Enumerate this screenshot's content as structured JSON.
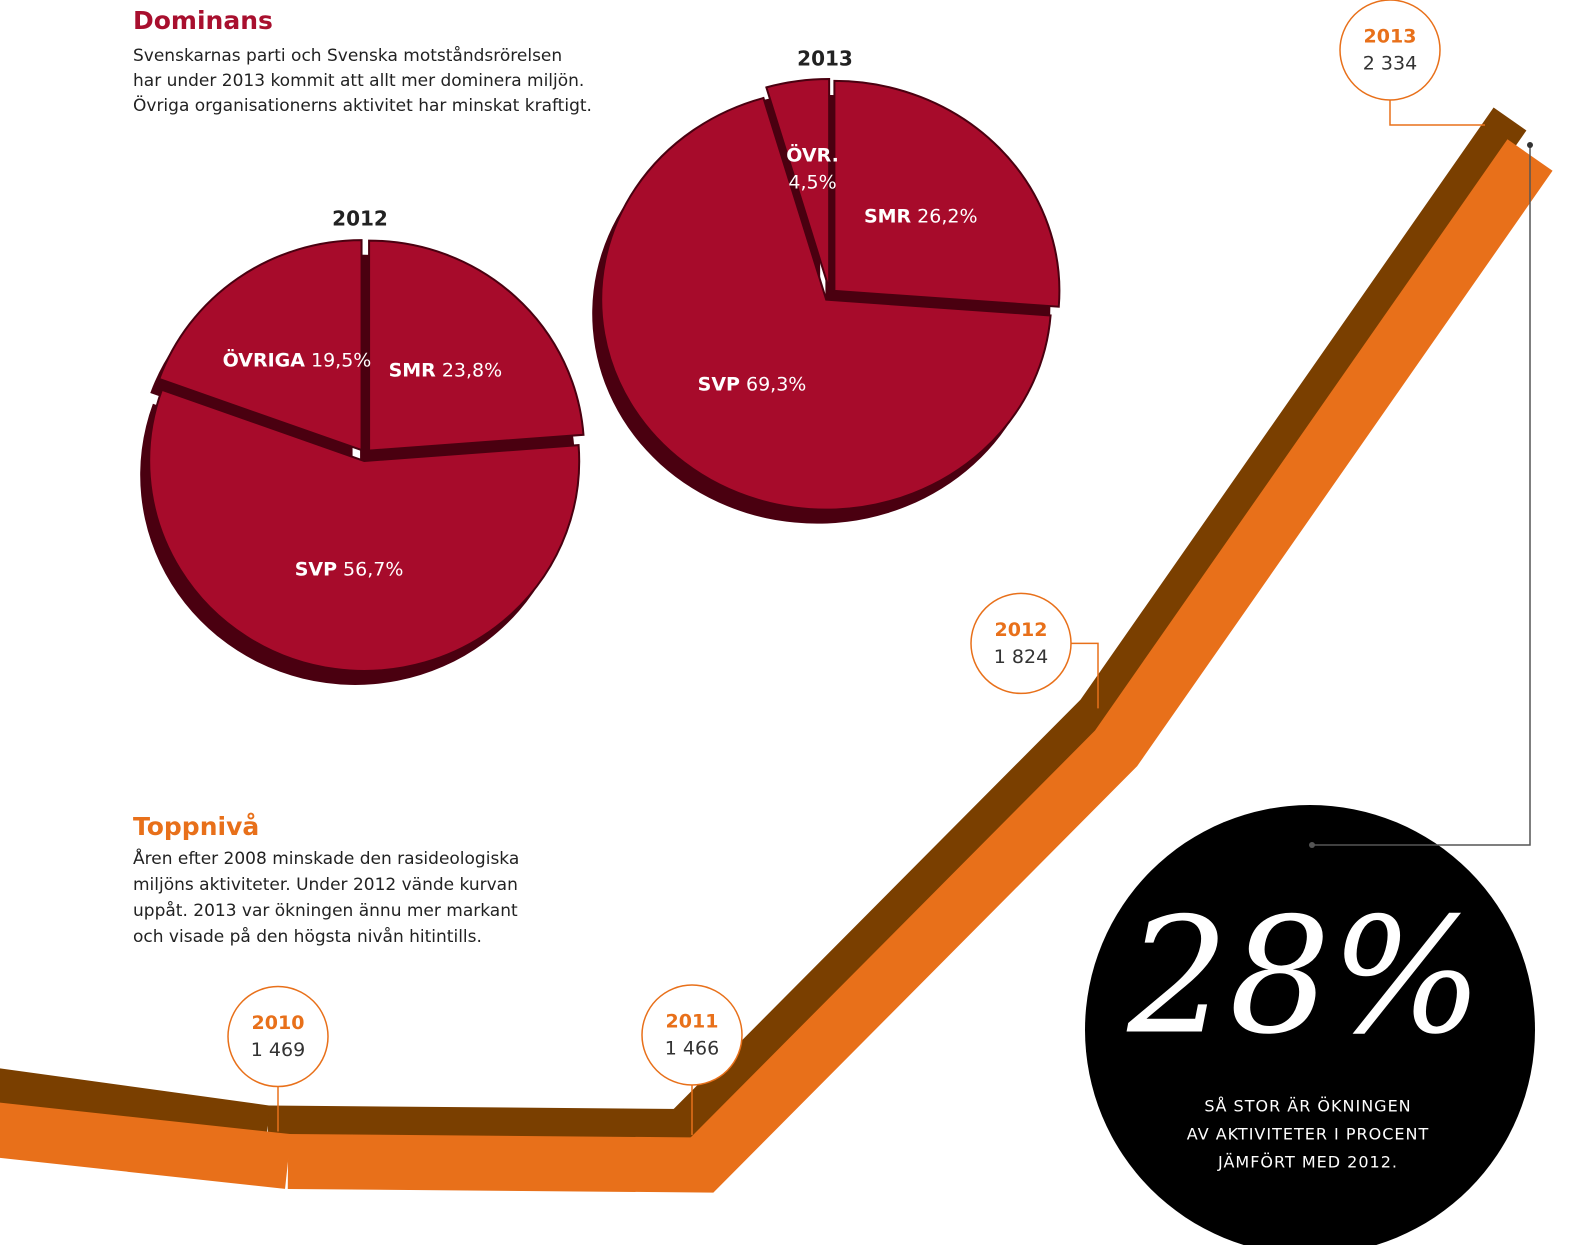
{
  "texts": {
    "dominans_title": "Dominans",
    "dominans_body": [
      "Svenskarnas parti och Svenska motståndsrörelsen",
      "har under 2013 kommit att allt mer dominera miljön.",
      "Övriga organisationerns aktivitet har minskat kraftigt."
    ],
    "topp_title": "Toppnivå",
    "topp_body": [
      "Åren efter 2008 minskade den rasideologiska",
      "miljöns aktiviteter. Under 2012 vände kurvan",
      "uppåt. 2013 var ökningen ännu mer markant",
      "och visade på den högsta nivån hitintills."
    ],
    "callout_big": "28%",
    "callout_body": [
      "SÅ STOR ÄR ÖKNINGEN",
      "AV AKTIVITETER I PROCENT",
      "JÄMFÖRT MED 2012."
    ]
  },
  "chart_data": [
    {
      "type": "pie",
      "title": "2012",
      "categories": [
        "SMR",
        "SVP",
        "ÖVRIGA"
      ],
      "values": [
        23.8,
        56.7,
        19.5
      ],
      "value_labels": [
        "23,8%",
        "56,7%",
        "19,5%"
      ],
      "color": "#a70b2b"
    },
    {
      "type": "pie",
      "title": "2013",
      "categories": [
        "SMR",
        "SVP",
        "ÖVR."
      ],
      "values": [
        26.2,
        69.3,
        4.5
      ],
      "value_labels": [
        "26,2%",
        "69,3%",
        "4,5%"
      ],
      "color": "#a70b2b"
    },
    {
      "type": "line",
      "categories": [
        "2010",
        "2011",
        "2012",
        "2013"
      ],
      "values": [
        1469,
        1466,
        1824,
        2334
      ],
      "value_labels": [
        "1 469",
        "1 466",
        "1 824",
        "2 334"
      ],
      "color": "#e8701a"
    }
  ]
}
